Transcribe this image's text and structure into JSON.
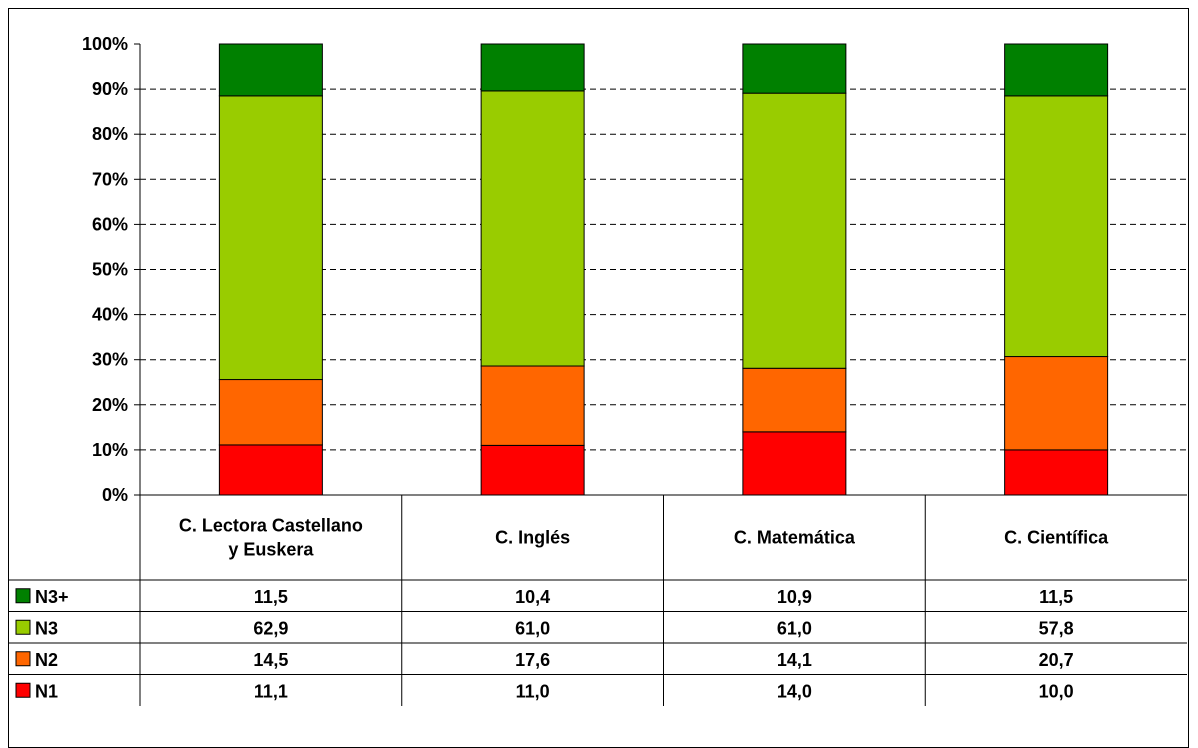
{
  "chart_data": {
    "type": "bar",
    "stacked": true,
    "percent_stacked": true,
    "categories": [
      "C. Lectora Castellano y Euskera",
      "C. Inglés",
      "C. Matemática",
      "C. Científica"
    ],
    "category_lines": [
      [
        "C. Lectora Castellano",
        "y Euskera"
      ],
      [
        "C. Inglés"
      ],
      [
        "C. Matemática"
      ],
      [
        "C. Científica"
      ]
    ],
    "series": [
      {
        "name": "N1",
        "color": "#ff0000",
        "values": [
          11.1,
          11.0,
          14.0,
          10.0
        ],
        "labels": [
          "11,1",
          "11,0",
          "14,0",
          "10,0"
        ]
      },
      {
        "name": "N2",
        "color": "#ff6600",
        "values": [
          14.5,
          17.6,
          14.1,
          20.7
        ],
        "labels": [
          "14,5",
          "17,6",
          "14,1",
          "20,7"
        ]
      },
      {
        "name": "N3",
        "color": "#99cc00",
        "values": [
          62.9,
          61.0,
          61.0,
          57.8
        ],
        "labels": [
          "62,9",
          "61,0",
          "61,0",
          "57,8"
        ]
      },
      {
        "name": "N3+",
        "color": "#008000",
        "values": [
          11.5,
          10.4,
          10.9,
          11.5
        ],
        "labels": [
          "11,5",
          "10,4",
          "10,9",
          "11,5"
        ]
      }
    ],
    "table_row_order": [
      "N3+",
      "N3",
      "N2",
      "N1"
    ],
    "y_ticks": [
      "0%",
      "10%",
      "20%",
      "30%",
      "40%",
      "50%",
      "60%",
      "70%",
      "80%",
      "90%",
      "100%"
    ],
    "ylim": [
      0,
      100
    ],
    "grid": "dashed-horizontal",
    "legend": "data-table"
  }
}
